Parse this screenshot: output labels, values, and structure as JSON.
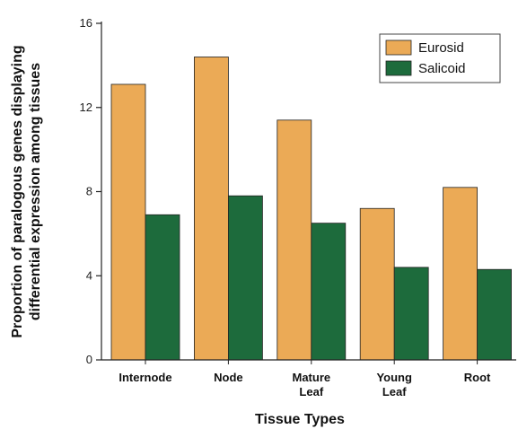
{
  "chart_data": {
    "type": "bar",
    "title": "",
    "xlabel": "Tissue Types",
    "ylabel_lines": [
      "Proportion of paralogous genes displaying",
      "differential expression among tissues"
    ],
    "categories": [
      [
        "Internode"
      ],
      [
        "Node"
      ],
      [
        "Mature",
        "Leaf"
      ],
      [
        "Young",
        "Leaf"
      ],
      [
        "Root"
      ]
    ],
    "series": [
      {
        "name": "Eurosid",
        "color": "#EBAA56",
        "values": [
          13.1,
          14.4,
          11.4,
          7.2,
          8.2
        ]
      },
      {
        "name": "Salicoid",
        "color": "#1D6B3C",
        "values": [
          6.9,
          7.8,
          6.5,
          4.4,
          4.3
        ]
      }
    ],
    "ylim": [
      0,
      16
    ],
    "yticks": [
      0,
      4,
      8,
      12,
      16
    ],
    "grid": false,
    "legend": "top-right"
  }
}
